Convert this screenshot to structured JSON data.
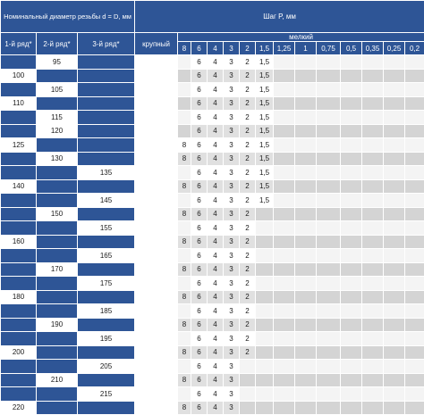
{
  "header": {
    "nominal": "Номинальный диаметр резьбы d = D, мм",
    "step": "Шаг P, мм",
    "row1": "1-й ряд*",
    "row2": "2-й ряд*",
    "row3": "3-й ряд*",
    "coarse": "крупный",
    "fine": "мелкий",
    "pitches": [
      "8",
      "6",
      "4",
      "3",
      "2",
      "1,5",
      "1,25",
      "1",
      "0,75",
      "0,5",
      "0,35",
      "0,25",
      "0,2"
    ]
  },
  "rows": [
    {
      "r1": "",
      "r2": "95",
      "r3": "",
      "p": [
        "",
        "6",
        "4",
        "3",
        "2",
        "1,5",
        "",
        "",
        "",
        "",
        "",
        "",
        ""
      ]
    },
    {
      "r1": "100",
      "r2": "",
      "r3": "",
      "p": [
        "",
        "6",
        "4",
        "3",
        "2",
        "1,5",
        "",
        "",
        "",
        "",
        "",
        "",
        ""
      ]
    },
    {
      "r1": "",
      "r2": "105",
      "r3": "",
      "p": [
        "",
        "6",
        "4",
        "3",
        "2",
        "1,5",
        "",
        "",
        "",
        "",
        "",
        "",
        ""
      ]
    },
    {
      "r1": "110",
      "r2": "",
      "r3": "",
      "p": [
        "",
        "6",
        "4",
        "3",
        "2",
        "1,5",
        "",
        "",
        "",
        "",
        "",
        "",
        ""
      ]
    },
    {
      "r1": "",
      "r2": "115",
      "r3": "",
      "p": [
        "",
        "6",
        "4",
        "3",
        "2",
        "1,5",
        "",
        "",
        "",
        "",
        "",
        "",
        ""
      ]
    },
    {
      "r1": "",
      "r2": "120",
      "r3": "",
      "p": [
        "",
        "6",
        "4",
        "3",
        "2",
        "1,5",
        "",
        "",
        "",
        "",
        "",
        "",
        ""
      ]
    },
    {
      "r1": "125",
      "r2": "",
      "r3": "",
      "p": [
        "8",
        "6",
        "4",
        "3",
        "2",
        "1,5",
        "",
        "",
        "",
        "",
        "",
        "",
        ""
      ]
    },
    {
      "r1": "",
      "r2": "130",
      "r3": "",
      "p": [
        "8",
        "6",
        "4",
        "3",
        "2",
        "1,5",
        "",
        "",
        "",
        "",
        "",
        "",
        ""
      ]
    },
    {
      "r1": "",
      "r2": "",
      "r3": "135",
      "p": [
        "",
        "6",
        "4",
        "3",
        "2",
        "1,5",
        "",
        "",
        "",
        "",
        "",
        "",
        ""
      ]
    },
    {
      "r1": "140",
      "r2": "",
      "r3": "",
      "p": [
        "8",
        "6",
        "4",
        "3",
        "2",
        "1,5",
        "",
        "",
        "",
        "",
        "",
        "",
        ""
      ]
    },
    {
      "r1": "",
      "r2": "",
      "r3": "145",
      "p": [
        "",
        "6",
        "4",
        "3",
        "2",
        "1,5",
        "",
        "",
        "",
        "",
        "",
        "",
        ""
      ]
    },
    {
      "r1": "",
      "r2": "150",
      "r3": "",
      "p": [
        "8",
        "6",
        "4",
        "3",
        "2",
        "",
        "",
        "",
        "",
        "",
        "",
        "",
        ""
      ]
    },
    {
      "r1": "",
      "r2": "",
      "r3": "155",
      "p": [
        "",
        "6",
        "4",
        "3",
        "2",
        "",
        "",
        "",
        "",
        "",
        "",
        "",
        ""
      ]
    },
    {
      "r1": "160",
      "r2": "",
      "r3": "",
      "p": [
        "8",
        "6",
        "4",
        "3",
        "2",
        "",
        "",
        "",
        "",
        "",
        "",
        "",
        ""
      ]
    },
    {
      "r1": "",
      "r2": "",
      "r3": "165",
      "p": [
        "",
        "6",
        "4",
        "3",
        "2",
        "",
        "",
        "",
        "",
        "",
        "",
        "",
        ""
      ]
    },
    {
      "r1": "",
      "r2": "170",
      "r3": "",
      "p": [
        "8",
        "6",
        "4",
        "3",
        "2",
        "",
        "",
        "",
        "",
        "",
        "",
        "",
        ""
      ]
    },
    {
      "r1": "",
      "r2": "",
      "r3": "175",
      "p": [
        "",
        "6",
        "4",
        "3",
        "2",
        "",
        "",
        "",
        "",
        "",
        "",
        "",
        ""
      ]
    },
    {
      "r1": "180",
      "r2": "",
      "r3": "",
      "p": [
        "8",
        "6",
        "4",
        "3",
        "2",
        "",
        "",
        "",
        "",
        "",
        "",
        "",
        ""
      ]
    },
    {
      "r1": "",
      "r2": "",
      "r3": "185",
      "p": [
        "",
        "6",
        "4",
        "3",
        "2",
        "",
        "",
        "",
        "",
        "",
        "",
        "",
        ""
      ]
    },
    {
      "r1": "",
      "r2": "190",
      "r3": "",
      "p": [
        "8",
        "6",
        "4",
        "3",
        "2",
        "",
        "",
        "",
        "",
        "",
        "",
        "",
        ""
      ]
    },
    {
      "r1": "",
      "r2": "",
      "r3": "195",
      "p": [
        "",
        "6",
        "4",
        "3",
        "2",
        "",
        "",
        "",
        "",
        "",
        "",
        "",
        ""
      ]
    },
    {
      "r1": "200",
      "r2": "",
      "r3": "",
      "p": [
        "8",
        "6",
        "4",
        "3",
        "2",
        "",
        "",
        "",
        "",
        "",
        "",
        "",
        ""
      ]
    },
    {
      "r1": "",
      "r2": "",
      "r3": "205",
      "p": [
        "",
        "6",
        "4",
        "3",
        "",
        "",
        "",
        "",
        "",
        "",
        "",
        "",
        ""
      ]
    },
    {
      "r1": "",
      "r2": "210",
      "r3": "",
      "p": [
        "8",
        "6",
        "4",
        "3",
        "",
        "",
        "",
        "",
        "",
        "",
        "",
        "",
        ""
      ]
    },
    {
      "r1": "",
      "r2": "",
      "r3": "215",
      "p": [
        "",
        "6",
        "4",
        "3",
        "",
        "",
        "",
        "",
        "",
        "",
        "",
        "",
        ""
      ]
    },
    {
      "r1": "220",
      "r2": "",
      "r3": "",
      "p": [
        "8",
        "6",
        "4",
        "3",
        "",
        "",
        "",
        "",
        "",
        "",
        "",
        "",
        ""
      ]
    }
  ]
}
